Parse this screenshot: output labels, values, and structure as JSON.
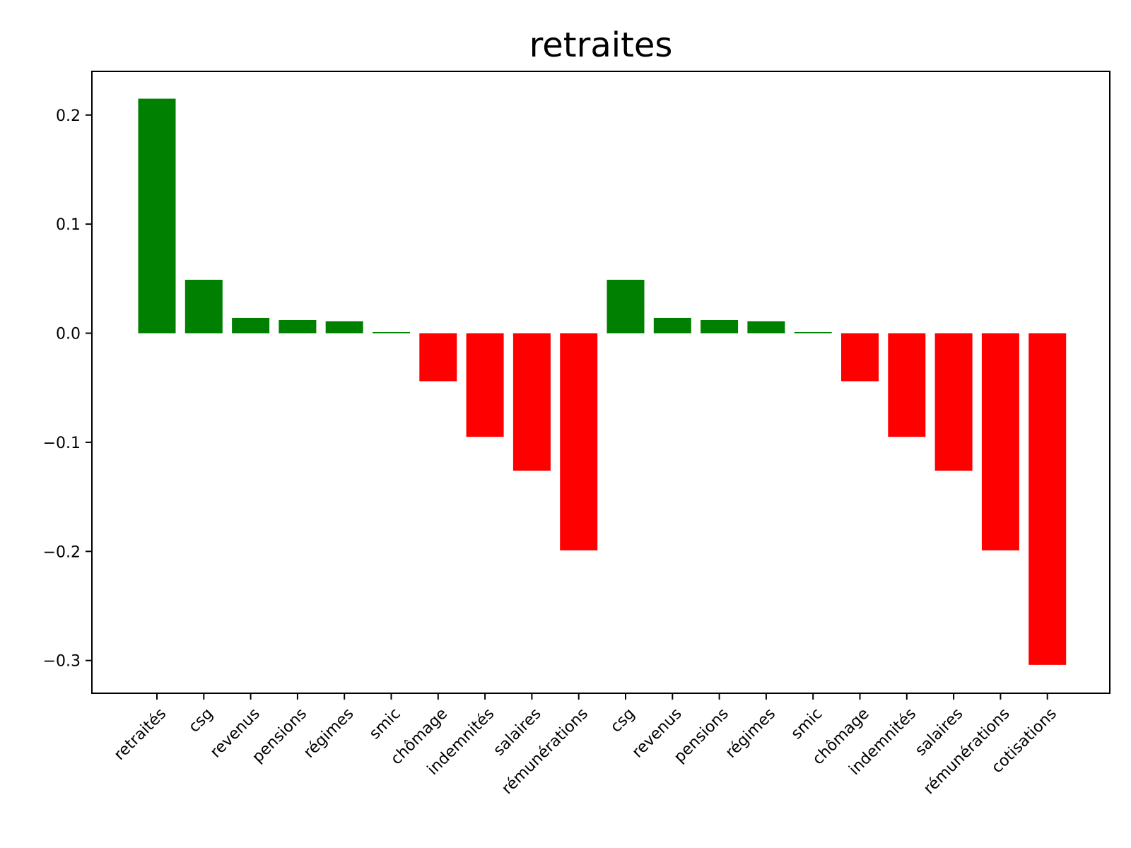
{
  "chart_data": {
    "type": "bar",
    "title": "retraites",
    "xlabel": "",
    "ylabel": "",
    "categories": [
      "retraités",
      "csg",
      "revenus",
      "pensions",
      "régimes",
      "smic",
      "chômage",
      "indemnités",
      "salaires",
      "rémunérations",
      "csg",
      "revenus",
      "pensions",
      "régimes",
      "smic",
      "chômage",
      "indemnités",
      "salaires",
      "rémunérations",
      "cotisations"
    ],
    "values": [
      0.215,
      0.049,
      0.014,
      0.012,
      0.011,
      0.001,
      -0.044,
      -0.095,
      -0.126,
      -0.199,
      0.049,
      0.014,
      0.012,
      0.011,
      0.001,
      -0.044,
      -0.095,
      -0.126,
      -0.199,
      -0.304
    ],
    "yticks": [
      0.2,
      0.1,
      0.0,
      -0.1,
      -0.2,
      -0.3
    ],
    "ytick_labels": [
      "0.2",
      "0.1",
      "0.0",
      "−0.1",
      "−0.2",
      "−0.3"
    ],
    "ylim": [
      -0.33,
      0.24
    ],
    "grid": false,
    "colors": {
      "positive": "#008000",
      "negative": "#ff0000"
    }
  }
}
